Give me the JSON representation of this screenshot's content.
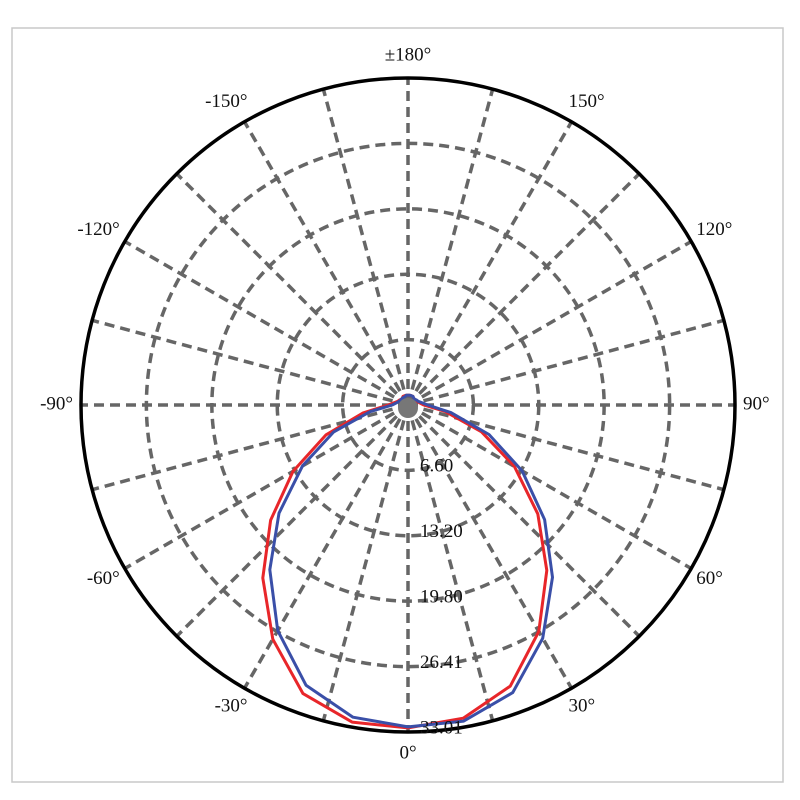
{
  "chart_data": {
    "type": "polar",
    "theta": [
      -180,
      -170,
      -160,
      -150,
      -140,
      -130,
      -120,
      -110,
      -100,
      -90,
      -80,
      -70,
      -60,
      -50,
      -40,
      -30,
      -20,
      -10,
      0,
      10,
      20,
      30,
      40,
      50,
      60,
      70,
      80,
      90,
      100,
      110,
      120,
      130,
      140,
      150,
      160,
      170,
      180
    ],
    "series": [
      {
        "color": "#e8262a",
        "values": [
          1.0,
          1.0,
          1.0,
          1.0,
          0.9,
          0.9,
          1.0,
          1.1,
          1.4,
          2.0,
          4.6,
          8.8,
          13.4,
          18.1,
          22.8,
          27.3,
          31.0,
          32.5,
          32.6,
          32.1,
          30.2,
          26.4,
          21.8,
          17.1,
          12.4,
          7.9,
          3.8,
          1.6,
          1.2,
          1.0,
          0.9,
          0.9,
          0.9,
          1.0,
          1.0,
          1.0,
          1.0
        ]
      },
      {
        "color": "#3a4fa8",
        "values": [
          1.0,
          1.0,
          0.9,
          0.9,
          0.9,
          0.9,
          0.9,
          1.0,
          1.2,
          1.6,
          3.9,
          8.0,
          12.3,
          17.0,
          21.7,
          26.3,
          30.1,
          32.0,
          32.5,
          32.4,
          30.9,
          27.2,
          22.7,
          18.0,
          13.3,
          8.7,
          4.4,
          2.0,
          1.4,
          1.1,
          1.0,
          0.9,
          0.9,
          1.0,
          1.0,
          1.0,
          1.0
        ]
      }
    ],
    "rlim": [
      0,
      33.01
    ],
    "rticks": [
      {
        "value": 6.6,
        "label": "6.60"
      },
      {
        "value": 13.2,
        "label": "13.20"
      },
      {
        "value": 19.8,
        "label": "19.80"
      },
      26.41,
      33.01
    ],
    "thetaticks": [
      {
        "value": 0,
        "label": "0°"
      },
      {
        "value": 30,
        "label": "30°"
      },
      {
        "value": 60,
        "label": "60°"
      },
      {
        "value": 90,
        "label": "90°"
      },
      {
        "value": 120,
        "label": "120°"
      },
      {
        "value": 150,
        "label": "150°"
      },
      {
        "value": 180,
        "label": "±180°"
      },
      {
        "value": -150,
        "label": "-150°"
      },
      {
        "value": -120,
        "label": "-120°"
      },
      {
        "value": -90,
        "label": "-90°"
      },
      {
        "value": -60,
        "label": "-60°"
      },
      {
        "value": -30,
        "label": "-30°"
      }
    ],
    "theta_minor_ticks": [
      15,
      45,
      75,
      105,
      135,
      165,
      -165,
      -135,
      -105,
      -75,
      -45,
      -15
    ],
    "grid": true
  }
}
